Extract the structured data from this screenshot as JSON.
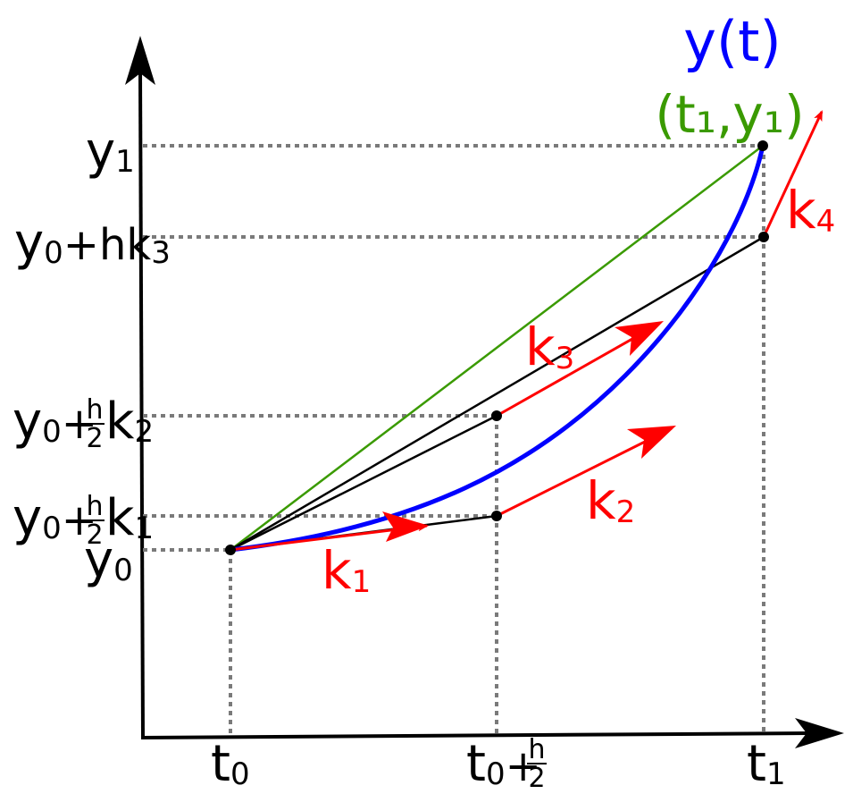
{
  "diagram": {
    "curve_label": "y(t)",
    "endpoint_label": "(t₁,y₁)",
    "colors": {
      "curve": "#0000ff",
      "endpoint": "#3a9a00",
      "slope": "#ff0000",
      "axis": "#000000",
      "guide": "#7a7a7a",
      "chord": "#3a9a00"
    },
    "y_axis_labels": {
      "y1": {
        "base": "y",
        "sub": "1"
      },
      "y0_hk3": {
        "base": "y",
        "sub": "0",
        "rest": "+hk",
        "sub2": "3"
      },
      "y0_h2k2": {
        "base": "y",
        "sub": "0",
        "plus": "+",
        "num": "h",
        "den": "2",
        "k": "k",
        "sub2": "2"
      },
      "y0_h2k1": {
        "base": "y",
        "sub": "0",
        "plus": "+",
        "num": "h",
        "den": "2",
        "k": "k",
        "sub2": "1"
      },
      "y0": {
        "base": "y",
        "sub": "0"
      }
    },
    "x_axis_labels": {
      "t0": {
        "base": "t",
        "sub": "0"
      },
      "t0_h2": {
        "base": "t",
        "sub": "0",
        "plus": "+",
        "num": "h",
        "den": "2"
      },
      "t1": {
        "base": "t",
        "sub": "1"
      }
    },
    "slope_labels": {
      "k1": {
        "base": "k",
        "sub": "1"
      },
      "k2": {
        "base": "k",
        "sub": "2"
      },
      "k3": {
        "base": "k",
        "sub": "3"
      },
      "k4": {
        "base": "k",
        "sub": "4"
      }
    },
    "icons": {
      "x_axis_arrow": "arrow-right-icon",
      "y_axis_arrow": "arrow-up-icon"
    }
  }
}
